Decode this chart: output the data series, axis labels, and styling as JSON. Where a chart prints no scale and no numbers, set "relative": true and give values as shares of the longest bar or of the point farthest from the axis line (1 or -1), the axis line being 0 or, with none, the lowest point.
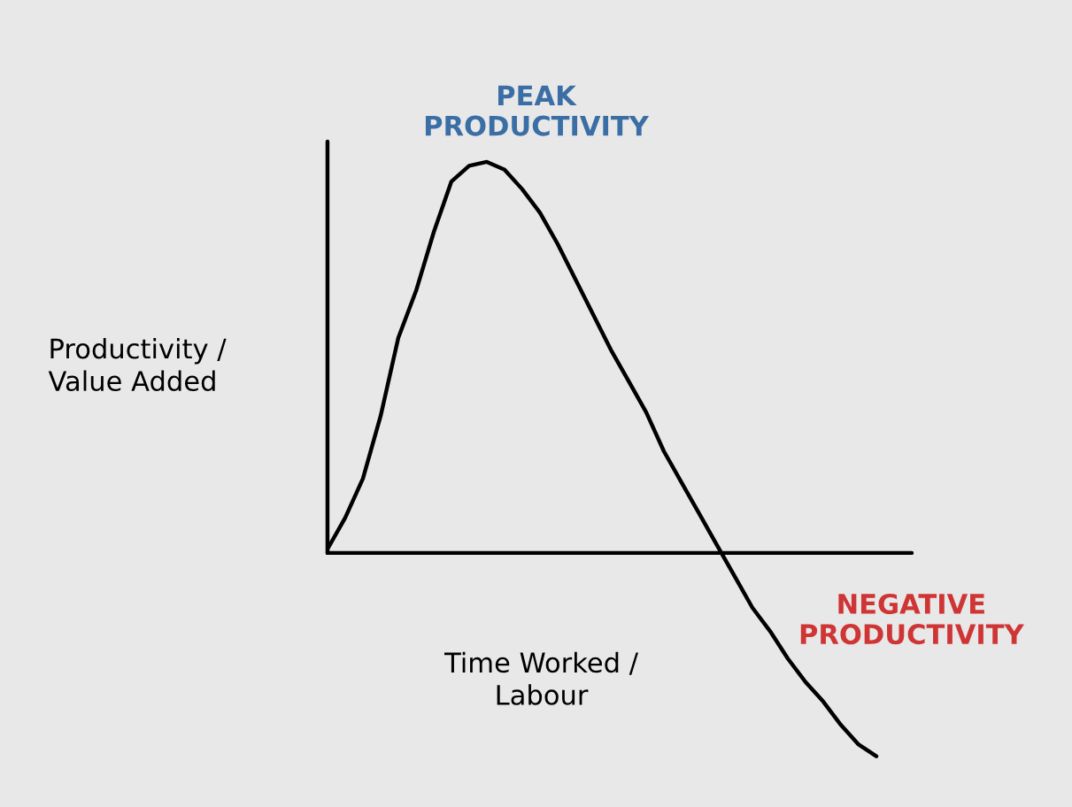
{
  "chart_data": {
    "type": "line",
    "relative": true,
    "categories": [
      null,
      null,
      null,
      null,
      null,
      null,
      null,
      null,
      null,
      null,
      null,
      null,
      null,
      null,
      null,
      null,
      null,
      null,
      null,
      null,
      null,
      null,
      null,
      null,
      null,
      null,
      null,
      null,
      null,
      null,
      null,
      null
    ],
    "series": [
      {
        "color": "#000000",
        "values": [
          0.01,
          0.09,
          0.19,
          0.35,
          0.55,
          0.67,
          0.82,
          0.95,
          0.99,
          1.0,
          0.98,
          0.93,
          0.87,
          0.79,
          0.7,
          0.61,
          0.52,
          0.44,
          0.36,
          0.26,
          0.18,
          0.1,
          0.02,
          -0.06,
          -0.14,
          -0.2,
          -0.27,
          -0.33,
          -0.38,
          -0.44,
          -0.49,
          -0.52
        ]
      }
    ],
    "xlabel": "Time Worked /\nLabour",
    "ylabel": "Productivity /\nValue Added",
    "annotations": [
      "PEAK\nPRODUCTIVITY",
      "NEGATIVE\nPRODUCTIVITY"
    ],
    "legend": false,
    "marker": "none",
    "line_style": "solid"
  }
}
